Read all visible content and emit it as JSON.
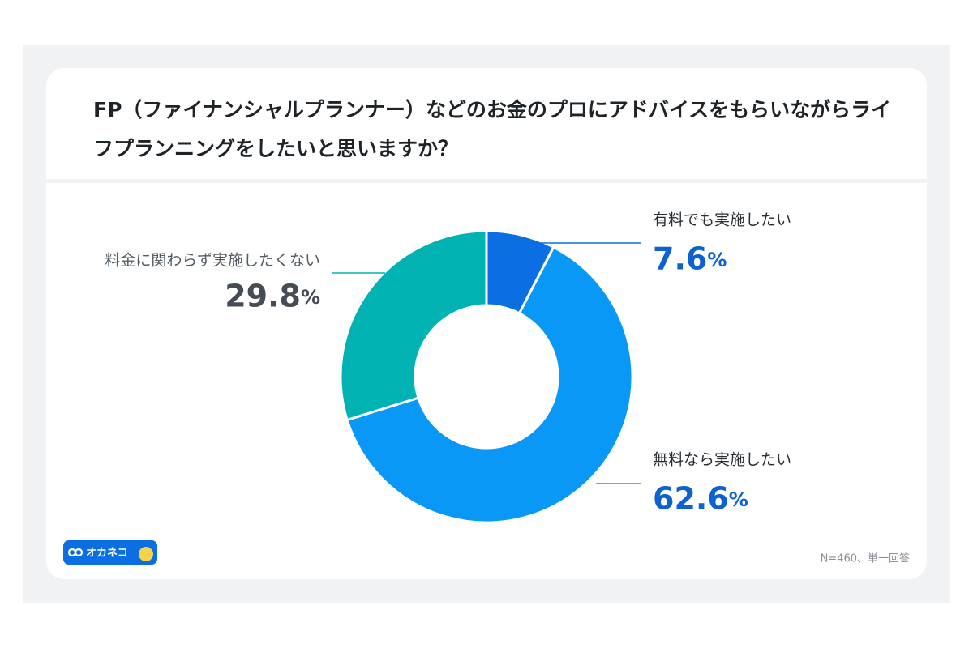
{
  "chart_data": {
    "type": "pie",
    "title": "FP（ファイナンシャルプランナー）などのお金のプロにアドバイスをもらいながらライフプランニングをしたいと思いますか？",
    "categories": [
      "有料でも実施したい",
      "無料なら実施したい",
      "料金に関わらず実施したくない"
    ],
    "values": [
      7.6,
      62.6,
      29.8
    ],
    "value_labels": [
      "7.6%",
      "62.6%",
      "29.8%"
    ],
    "colors": [
      "#0b6fe3",
      "#0a98f7",
      "#00b3b3"
    ],
    "donut": true,
    "footnote": "N=460、単一回答"
  },
  "logo": "オカネコ"
}
